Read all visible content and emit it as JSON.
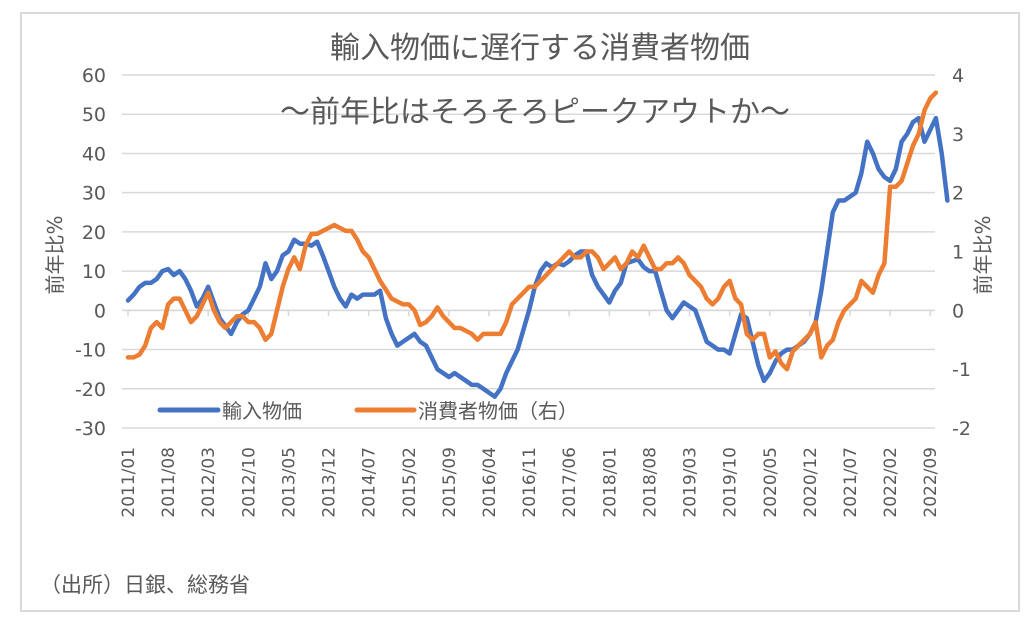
{
  "chart_data": {
    "type": "line",
    "title": "輸入物価に遅行する消費者物価",
    "subtitle": "～前年比はそろそろピークアウトか～",
    "ylabel_left": "前年比%",
    "ylabel_right": "前年比%",
    "ylim_left": [
      -30,
      60
    ],
    "ylim_right": [
      -2,
      4
    ],
    "yticks_left": [
      60,
      50,
      40,
      30,
      20,
      10,
      0,
      -10,
      -20,
      -30
    ],
    "yticks_right": [
      4,
      3,
      2,
      1,
      0,
      -1,
      -2
    ],
    "x_start": "2011/01",
    "x_tick_labels": [
      "2011/01",
      "2011/08",
      "2012/03",
      "2012/10",
      "2013/05",
      "2013/12",
      "2014/07",
      "2015/02",
      "2015/09",
      "2016/04",
      "2016/11",
      "2017/06",
      "2018/01",
      "2018/08",
      "2019/03",
      "2019/10",
      "2020/05",
      "2020/12",
      "2021/07",
      "2022/02",
      "2022/09"
    ],
    "grid": true,
    "legend_position": "bottom-left",
    "source": "（出所）日銀、総務省",
    "series": [
      {
        "name": "輸入物価",
        "axis": "left",
        "color": "#4472c4",
        "values": [
          2.5,
          4,
          6,
          7,
          7,
          8,
          10,
          10.5,
          9,
          10,
          8,
          5,
          1,
          3,
          6,
          2,
          -2,
          -4,
          -6,
          -3,
          -1,
          0,
          3,
          6,
          12,
          8,
          10,
          14,
          15,
          18,
          17,
          17,
          16.5,
          17.5,
          14,
          10,
          6,
          3,
          1,
          4,
          3,
          4,
          4,
          4,
          5,
          -2,
          -6,
          -9,
          -8,
          -7,
          -6,
          -8,
          -9,
          -12,
          -15,
          -16,
          -17,
          -16,
          -17,
          -18,
          -19,
          -19,
          -20,
          -21,
          -22,
          -20,
          -16,
          -13,
          -10,
          -5,
          0,
          6,
          10,
          12,
          11,
          12,
          11.5,
          12.5,
          14,
          15,
          15,
          9,
          6,
          4,
          2,
          5,
          7,
          12,
          12.5,
          13,
          11,
          10,
          10,
          5,
          0,
          -2,
          0,
          2,
          1,
          0,
          -4,
          -8,
          -9,
          -10,
          -10,
          -11,
          -6,
          -1,
          -2,
          -8,
          -14,
          -18,
          -16,
          -13,
          -11,
          -10,
          -10,
          -9,
          -8,
          -6,
          -3,
          5,
          15,
          25,
          28,
          28,
          29,
          30,
          35,
          43,
          40,
          36,
          34,
          33,
          36,
          43,
          45,
          48,
          49,
          43,
          46,
          49,
          40,
          28
        ]
      },
      {
        "name": "消費者物価（右）",
        "axis": "right",
        "color": "#ed7d31",
        "values": [
          -0.8,
          -0.8,
          -0.75,
          -0.6,
          -0.3,
          -0.2,
          -0.3,
          0.1,
          0.2,
          0.2,
          0.0,
          -0.2,
          -0.1,
          0.1,
          0.3,
          0.0,
          -0.2,
          -0.3,
          -0.2,
          -0.1,
          -0.1,
          -0.2,
          -0.2,
          -0.3,
          -0.5,
          -0.4,
          0.0,
          0.4,
          0.7,
          0.9,
          0.7,
          1.1,
          1.3,
          1.3,
          1.35,
          1.4,
          1.45,
          1.4,
          1.35,
          1.35,
          1.2,
          1.0,
          0.9,
          0.7,
          0.5,
          0.35,
          0.2,
          0.15,
          0.1,
          0.1,
          0.0,
          -0.25,
          -0.2,
          -0.1,
          0.05,
          -0.1,
          -0.2,
          -0.3,
          -0.3,
          -0.35,
          -0.4,
          -0.5,
          -0.4,
          -0.4,
          -0.4,
          -0.4,
          -0.2,
          0.1,
          0.2,
          0.3,
          0.4,
          0.4,
          0.5,
          0.6,
          0.7,
          0.8,
          0.9,
          1.0,
          0.9,
          0.9,
          1.0,
          1.0,
          0.9,
          0.7,
          0.8,
          0.9,
          0.7,
          0.8,
          1.0,
          0.9,
          1.1,
          0.9,
          0.7,
          0.7,
          0.8,
          0.8,
          0.9,
          0.8,
          0.6,
          0.5,
          0.4,
          0.2,
          0.1,
          0.2,
          0.4,
          0.5,
          0.2,
          0.1,
          -0.4,
          -0.5,
          -0.4,
          -0.4,
          -0.8,
          -0.7,
          -0.9,
          -1.0,
          -0.7,
          -0.6,
          -0.5,
          -0.4,
          -0.2,
          -0.8,
          -0.6,
          -0.5,
          -0.2,
          0.0,
          0.1,
          0.2,
          0.5,
          0.4,
          0.3,
          0.6,
          0.8,
          2.1,
          2.1,
          2.2,
          2.5,
          2.8,
          3.0,
          3.4,
          3.6,
          3.7
        ]
      }
    ]
  }
}
